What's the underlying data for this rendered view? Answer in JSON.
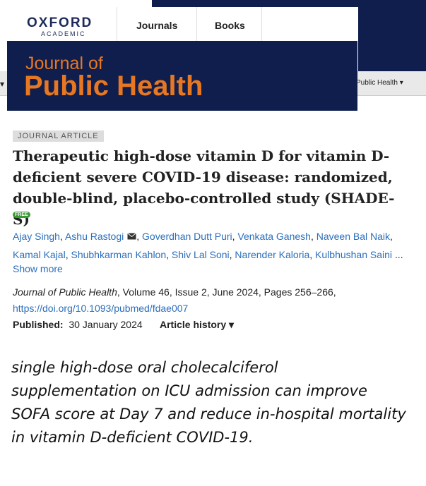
{
  "header": {
    "logo_line1": "OXFORD",
    "logo_line2": "ACADEMIC",
    "nav": [
      "Journals",
      "Books"
    ],
    "dropdown": "Public Health"
  },
  "banner": {
    "line1": "Journal of",
    "line2": "Public Health"
  },
  "article": {
    "type": "JOURNAL ARTICLE",
    "title": "Therapeutic high-dose vitamin D for vitamin D-deficient severe COVID-19 disease: randomized, double-blind, placebo-controlled study (SHADE-S)",
    "badge": "FREE",
    "authors": [
      "Ajay Singh",
      "Ashu Rastogi",
      "Goverdhan Dutt Puri",
      "Venkata Ganesh",
      "Naveen Bal Naik",
      "Kamal Kajal",
      "Shubhkarman Kahlon",
      "Shiv Lal Soni",
      "Narender Kaloria",
      "Kulbhushan Saini"
    ],
    "author_separator": ",",
    "authors_ellipsis": "...",
    "show_more": "Show more",
    "citation_journal": "Journal of Public Health",
    "citation_details": ", Volume 46, Issue 2, June 2024, Pages 256–266,",
    "doi": "https://doi.org/10.1093/pubmed/fdae007",
    "published_label": "Published:",
    "published_date": "30 January 2024",
    "history": "Article history"
  },
  "caption": "single high-dose oral cholecalciferol supplementation on ICU admission can improve SOFA score at Day 7 and reduce in-hospital mortality in vitamin D-deficient COVID-19."
}
